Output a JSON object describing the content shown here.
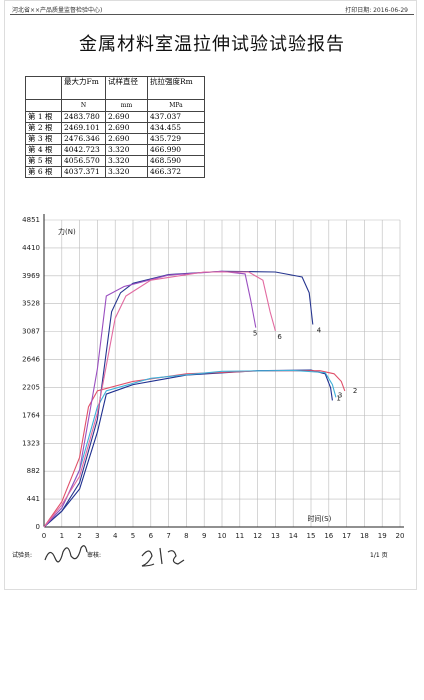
{
  "header": {
    "org": "河北省××产品质量监督检验中心)",
    "print_date": "打印日期: 2016-06-29"
  },
  "title": "金属材料室温拉伸试验试验报告",
  "table": {
    "columns": [
      "最大力Fm",
      "试样直径",
      "抗拉强度Rm"
    ],
    "units": [
      "N",
      "mm",
      "MPa"
    ],
    "rows": [
      [
        "第 1 根",
        "2483.780",
        "2.690",
        "437.037"
      ],
      [
        "第 2 根",
        "2469.101",
        "2.690",
        "434.455"
      ],
      [
        "第 3 根",
        "2476.346",
        "2.690",
        "435.729"
      ],
      [
        "第 4 根",
        "4042.723",
        "3.320",
        "466.990"
      ],
      [
        "第 5 根",
        "4056.570",
        "3.320",
        "468.590"
      ],
      [
        "第 6 根",
        "4037.371",
        "3.320",
        "466.372"
      ]
    ]
  },
  "chart_data": {
    "type": "line",
    "y_label": "力(N)",
    "x_label": "时间(S)",
    "grid": true,
    "xlim": [
      0,
      20
    ],
    "xticks": [
      0,
      1,
      2,
      3,
      4,
      5,
      6,
      7,
      8,
      9,
      10,
      11,
      12,
      13,
      14,
      15,
      16,
      17,
      18,
      19,
      20
    ],
    "ylim": [
      0,
      4851
    ],
    "yticks": [
      0,
      441,
      882,
      1323,
      1764,
      2205,
      2646,
      3087,
      3528,
      3969,
      4410,
      4851
    ],
    "series": [
      {
        "name": "1",
        "color": "#1f2f8f",
        "x": [
          0,
          1,
          2,
          3,
          3.5,
          5,
          8,
          12,
          15,
          15.8,
          16.1,
          16.2
        ],
        "values": [
          0,
          250,
          600,
          1500,
          2100,
          2250,
          2400,
          2470,
          2480,
          2420,
          2200,
          2000
        ]
      },
      {
        "name": "2",
        "color": "#e0506a",
        "x": [
          0,
          1,
          2,
          2.5,
          3,
          5,
          8,
          12,
          15.5,
          16.3,
          16.7,
          16.9
        ],
        "values": [
          0,
          400,
          1100,
          1900,
          2150,
          2300,
          2420,
          2465,
          2470,
          2420,
          2300,
          2150
        ]
      },
      {
        "name": "3",
        "color": "#3fb0d8",
        "x": [
          0,
          1,
          2,
          3,
          3.5,
          6,
          10,
          14,
          15.8,
          16.2,
          16.4
        ],
        "values": [
          0,
          300,
          900,
          1900,
          2150,
          2350,
          2460,
          2475,
          2440,
          2250,
          2050
        ]
      },
      {
        "name": "4",
        "color": "#26358f",
        "x": [
          0,
          1,
          2,
          3,
          3.8,
          4.3,
          5,
          7,
          10,
          13,
          14.5,
          14.9,
          15.1
        ],
        "values": [
          0,
          250,
          700,
          1700,
          3400,
          3700,
          3850,
          3990,
          4040,
          4030,
          3950,
          3700,
          3200
        ]
      },
      {
        "name": "5",
        "color": "#9a4fc0",
        "x": [
          0,
          1,
          2,
          3,
          3.5,
          4.5,
          7,
          10,
          11.3,
          11.6,
          11.9
        ],
        "values": [
          0,
          300,
          900,
          2500,
          3650,
          3800,
          3980,
          4040,
          4000,
          3600,
          3150
        ]
      },
      {
        "name": "6",
        "color": "#e26aa0",
        "x": [
          0,
          1,
          2,
          3,
          4,
          4.6,
          6,
          9,
          11.5,
          12.3,
          12.7,
          13
        ],
        "values": [
          0,
          350,
          800,
          1800,
          3300,
          3650,
          3900,
          4030,
          4030,
          3900,
          3400,
          3100
        ]
      }
    ]
  },
  "footer": {
    "tester": "试验员:",
    "reviewer": "审核:",
    "page": "1/1 页"
  }
}
